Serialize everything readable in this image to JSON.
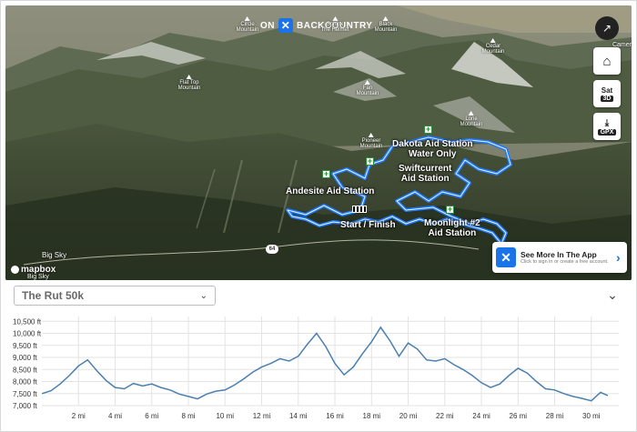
{
  "brand": {
    "left": "ON",
    "right": "BACKCOUNTRY"
  },
  "map": {
    "peaks": [
      {
        "name": "Circle\nMountain"
      },
      {
        "name": "Sphinx\nThe Helmet"
      },
      {
        "name": "Black\nMountain"
      },
      {
        "name": "Cedar\nMountain"
      },
      {
        "name": "Fan\nMountain"
      },
      {
        "name": "Lone\nMountain"
      },
      {
        "name": "Flat Top\nMountain"
      },
      {
        "name": "Pioneer\nMountain"
      }
    ],
    "aid_stations": [
      {
        "label": "Dakota Aid Station\nWater Only"
      },
      {
        "label": "Swiftcurrent\nAid Station"
      },
      {
        "label": "Andesite Aid Station"
      },
      {
        "label": "Moonlight #2\nAid Station"
      }
    ],
    "start_finish_label": "Start / Finish",
    "town_label": "Big Sky",
    "road_number": "64",
    "attribution": {
      "logo": "mapbox",
      "sub": "Big Sky"
    }
  },
  "controls": {
    "compass_icon": "compass-icon",
    "camera_label": "Camer",
    "home_icon": "home-icon",
    "layer_label": "Sat",
    "view_label": "3D",
    "gpx_label": "GPX"
  },
  "app_card": {
    "title": "See More In The App",
    "subtitle": "Click to sign in or create a free account."
  },
  "route_select": {
    "value": "The Rut 50k"
  },
  "chart_data": {
    "type": "area",
    "title": "",
    "xlabel": "",
    "ylabel": "",
    "unit_x": "mi",
    "unit_y": "ft",
    "xlim": [
      0,
      31.5
    ],
    "ylim": [
      7000,
      10700
    ],
    "y_ticks": [
      7000,
      7500,
      8000,
      8500,
      9000,
      9500,
      10000,
      10500
    ],
    "y_tick_labels": [
      "7,000 ft",
      "7,500 ft",
      "8,000 ft",
      "8,500 ft",
      "9,000 ft",
      "9,500 ft",
      "10,000 ft",
      "10,500 ft"
    ],
    "x_ticks": [
      2,
      4,
      6,
      8,
      10,
      12,
      14,
      16,
      18,
      20,
      22,
      24,
      26,
      28,
      30
    ],
    "x_tick_labels": [
      "2 mi",
      "4 mi",
      "6 mi",
      "8 mi",
      "10 mi",
      "12 mi",
      "14 mi",
      "16 mi",
      "18 mi",
      "20 mi",
      "22 mi",
      "24 mi",
      "26 mi",
      "28 mi",
      "30 mi"
    ],
    "grid": true,
    "color": "#4a7fb0",
    "x": [
      0,
      0.5,
      1,
      1.5,
      2,
      2.5,
      3,
      3.5,
      4,
      4.5,
      5,
      5.5,
      6,
      6.5,
      7,
      7.5,
      8,
      8.5,
      9,
      9.5,
      10,
      10.5,
      11,
      11.5,
      12,
      12.5,
      13,
      13.5,
      14,
      14.5,
      15,
      15.5,
      16,
      16.5,
      17,
      17.5,
      18,
      18.5,
      19,
      19.5,
      20,
      20.5,
      21,
      21.5,
      22,
      22.5,
      23,
      23.5,
      24,
      24.5,
      25,
      25.5,
      26,
      26.5,
      27,
      27.5,
      28,
      28.5,
      29,
      29.5,
      30,
      30.5,
      30.9
    ],
    "values": [
      7500,
      7620,
      7900,
      8250,
      8650,
      8900,
      8450,
      8050,
      7750,
      7700,
      7920,
      7820,
      7900,
      7750,
      7650,
      7480,
      7380,
      7280,
      7480,
      7600,
      7650,
      7850,
      8100,
      8380,
      8600,
      8750,
      8950,
      8850,
      9050,
      9550,
      10000,
      9450,
      8750,
      8280,
      8600,
      9150,
      9650,
      10250,
      9700,
      9050,
      9600,
      9350,
      8900,
      8850,
      8950,
      8700,
      8500,
      8250,
      7950,
      7750,
      7900,
      8250,
      8550,
      8350,
      8000,
      7700,
      7650,
      7500,
      7380,
      7300,
      7200,
      7550,
      7420
    ]
  }
}
